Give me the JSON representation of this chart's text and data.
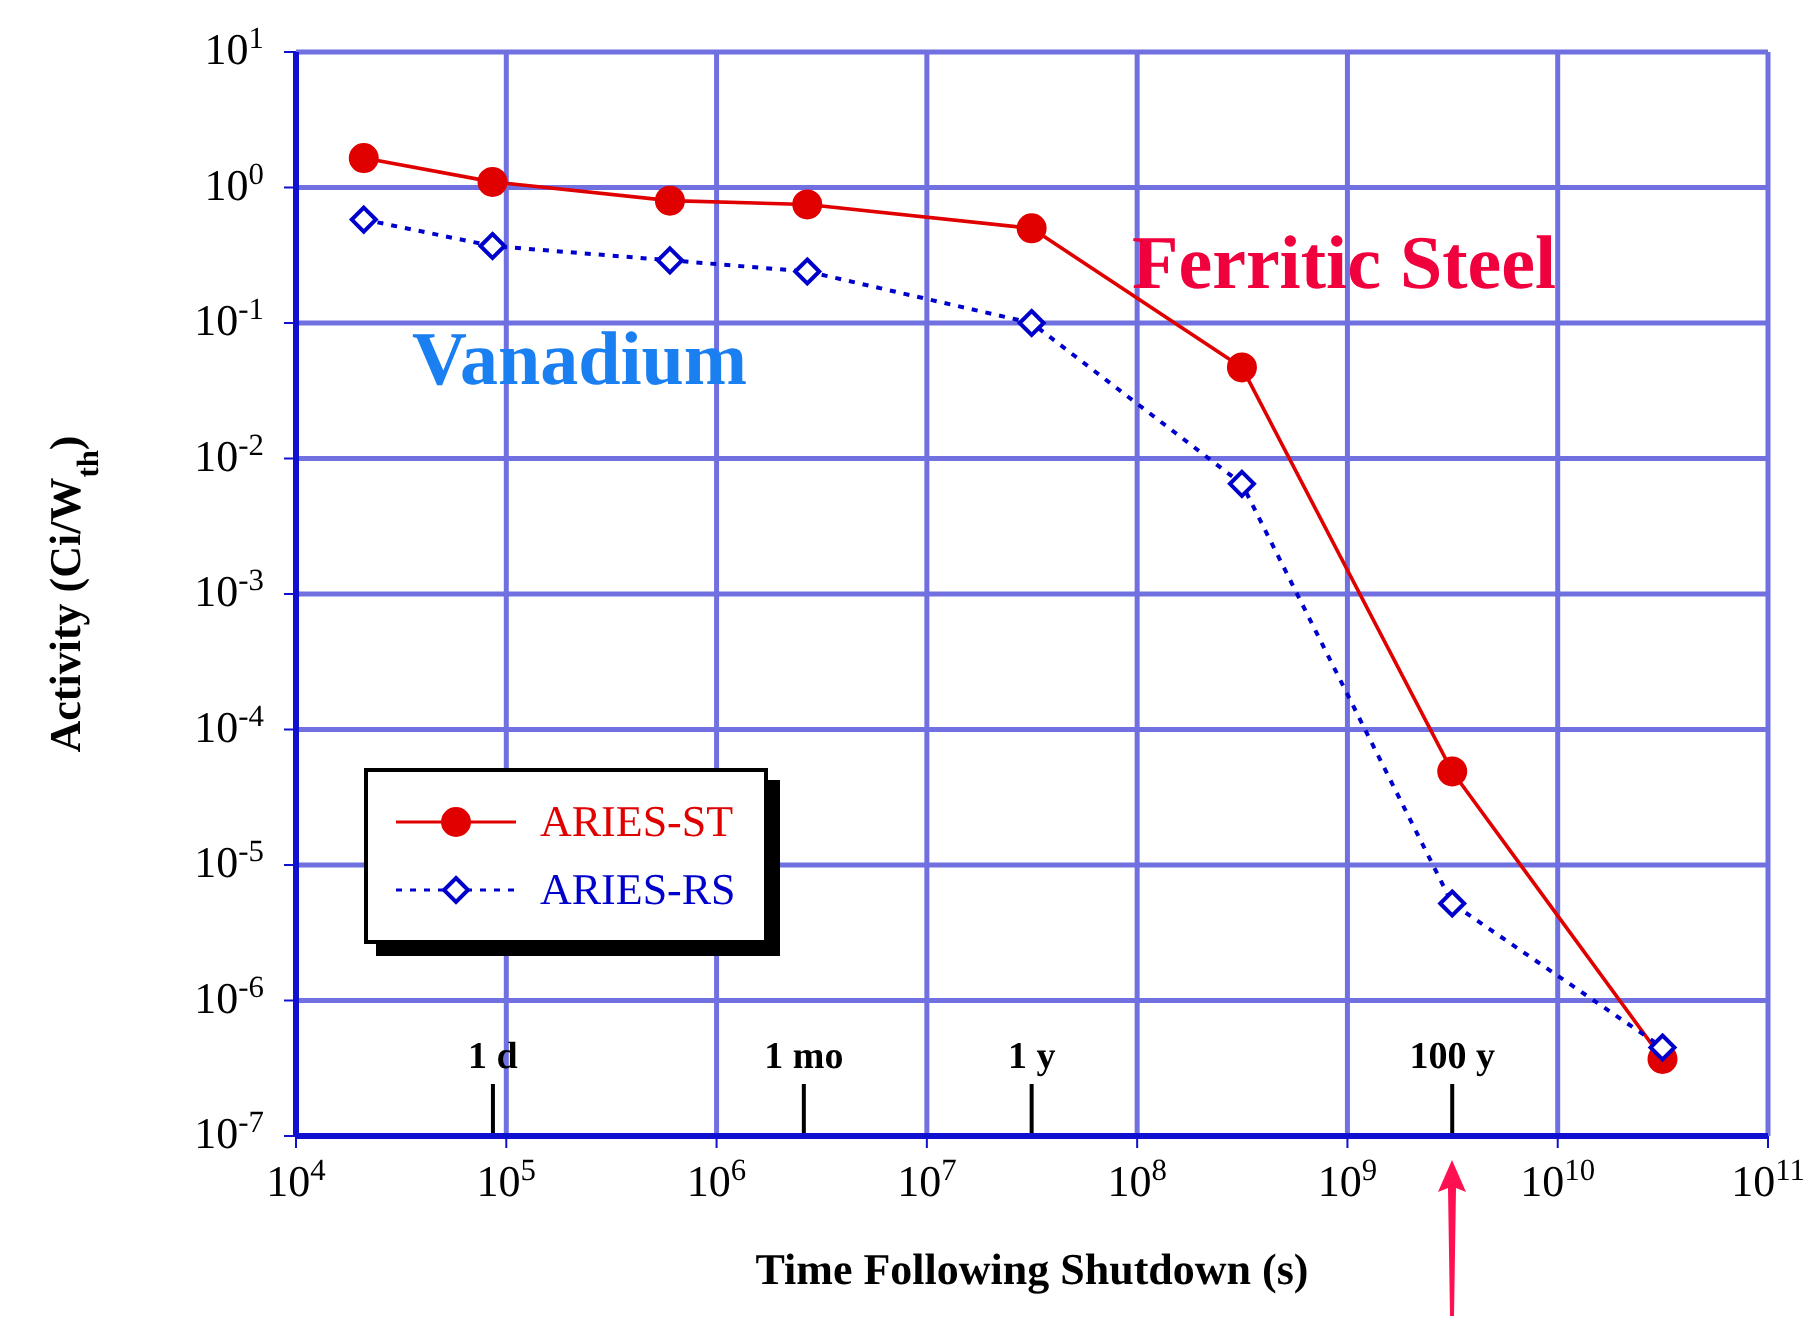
{
  "chart_data": {
    "type": "line",
    "xlabel": "Time Following Shutdown (s)",
    "ylabel": "Activity (Ci/W$_{th}$)",
    "log": "xy",
    "grid": true,
    "legend": "bottom left",
    "xlim": [
      10000,
      100000000000
    ],
    "ylim": [
      1e-07,
      10
    ],
    "xticks": [
      {
        "value": 10000,
        "label": "10$^{4}$"
      },
      {
        "value": 100000,
        "label": "10$^{5}$"
      },
      {
        "value": 1000000,
        "label": "10$^{6}$"
      },
      {
        "value": 10000000,
        "label": "10$^{7}$"
      },
      {
        "value": 100000000,
        "label": "10$^{8}$"
      },
      {
        "value": 1000000000,
        "label": "10$^{9}$"
      },
      {
        "value": 10000000000,
        "label": "10$^{10}$"
      },
      {
        "value": 100000000000,
        "label": "10$^{11}$"
      }
    ],
    "yticks": [
      {
        "value": 1e-07,
        "label": "10$^{-7}$"
      },
      {
        "value": 1e-06,
        "label": "10$^{-6}$"
      },
      {
        "value": 1e-05,
        "label": "10$^{-5}$"
      },
      {
        "value": 0.0001,
        "label": "10$^{-4}$"
      },
      {
        "value": 0.001,
        "label": "10$^{-3}$"
      },
      {
        "value": 0.01,
        "label": "10$^{-2}$"
      },
      {
        "value": 0.1,
        "label": "10$^{-1}$"
      },
      {
        "value": 1,
        "label": "10$^{0}$"
      },
      {
        "value": 10,
        "label": "10$^{1}$"
      }
    ],
    "series": [
      {
        "name": "ARIES-ST",
        "color": "#e00000",
        "marker": "circle",
        "line_style": "solid",
        "x": [
          21000,
          86000,
          600000,
          2700000,
          31500000,
          315000000,
          3150000000,
          31500000000
        ],
        "values": [
          1.65,
          1.1,
          0.8,
          0.75,
          0.5,
          0.047,
          4.9e-05,
          3.7e-07
        ]
      },
      {
        "name": "ARIES-RS",
        "color": "#0000cc",
        "marker": "diamond",
        "line_style": "dotted",
        "x": [
          21000,
          86000,
          600000,
          2700000,
          31500000,
          315000000,
          3150000000,
          31500000000
        ],
        "values": [
          0.58,
          0.37,
          0.29,
          0.24,
          0.1,
          0.0065,
          5.2e-06,
          4.5e-07
        ]
      }
    ],
    "ref_lines": [
      {
        "axis": "x",
        "value": 86400,
        "label": "1 d"
      },
      {
        "axis": "x",
        "value": 2600000,
        "label": "1 mo"
      },
      {
        "axis": "x",
        "value": 31500000,
        "label": "1 y"
      },
      {
        "axis": "x",
        "value": 3150000000,
        "label": "100 y"
      }
    ],
    "annotations": [
      "Vanadium",
      "Ferritic Steel"
    ]
  }
}
